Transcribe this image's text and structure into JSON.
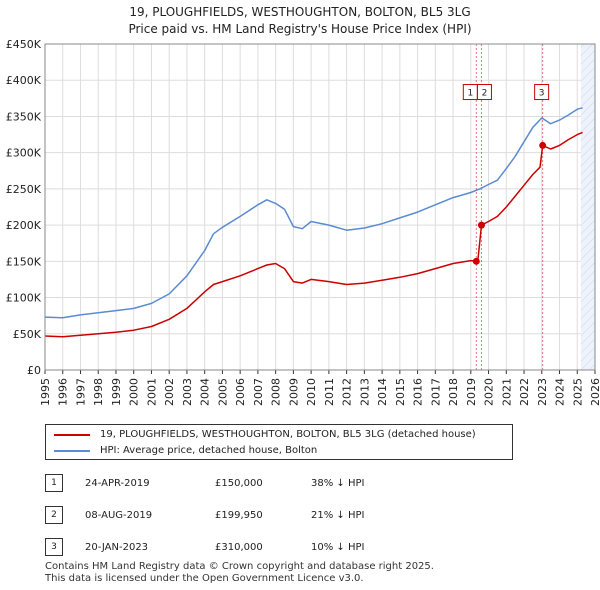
{
  "chart_data": {
    "type": "line",
    "title": "19, PLOUGHFIELDS, WESTHOUGHTON, BOLTON, BL5 3LG",
    "subtitle": "Price paid vs. HM Land Registry's House Price Index (HPI)",
    "xlim": [
      1995,
      2026
    ],
    "ylim": [
      0,
      450000
    ],
    "x_ticks": [
      "1995",
      "1996",
      "1997",
      "1998",
      "1999",
      "2000",
      "2001",
      "2002",
      "2003",
      "2004",
      "2005",
      "2006",
      "2007",
      "2008",
      "2009",
      "2010",
      "2011",
      "2012",
      "2013",
      "2014",
      "2015",
      "2016",
      "2017",
      "2018",
      "2019",
      "2020",
      "2021",
      "2022",
      "2023",
      "2024",
      "2025",
      "2026"
    ],
    "y_ticks": [
      {
        "value": 0,
        "label": "£0"
      },
      {
        "value": 50000,
        "label": "£50K"
      },
      {
        "value": 100000,
        "label": "£100K"
      },
      {
        "value": 150000,
        "label": "£150K"
      },
      {
        "value": 200000,
        "label": "£200K"
      },
      {
        "value": 250000,
        "label": "£250K"
      },
      {
        "value": 300000,
        "label": "£300K"
      },
      {
        "value": 350000,
        "label": "£350K"
      },
      {
        "value": 400000,
        "label": "£400K"
      },
      {
        "value": 450000,
        "label": "£450K"
      }
    ],
    "forecast_from": 2025.2,
    "series": [
      {
        "name": "19, PLOUGHFIELDS, WESTHOUGHTON, BOLTON, BL5 3LG (detached house)",
        "color": "#cc0000",
        "points": [
          [
            1995.0,
            47000
          ],
          [
            1996.0,
            46000
          ],
          [
            1997.0,
            48000
          ],
          [
            1998.0,
            50000
          ],
          [
            1999.0,
            52000
          ],
          [
            2000.0,
            55000
          ],
          [
            2001.0,
            60000
          ],
          [
            2002.0,
            70000
          ],
          [
            2003.0,
            85000
          ],
          [
            2004.0,
            108000
          ],
          [
            2004.5,
            118000
          ],
          [
            2005.0,
            122000
          ],
          [
            2006.0,
            130000
          ],
          [
            2007.0,
            140000
          ],
          [
            2007.5,
            145000
          ],
          [
            2008.0,
            147000
          ],
          [
            2008.5,
            140000
          ],
          [
            2009.0,
            122000
          ],
          [
            2009.5,
            120000
          ],
          [
            2010.0,
            125000
          ],
          [
            2011.0,
            122000
          ],
          [
            2012.0,
            118000
          ],
          [
            2013.0,
            120000
          ],
          [
            2014.0,
            124000
          ],
          [
            2015.0,
            128000
          ],
          [
            2016.0,
            133000
          ],
          [
            2017.0,
            140000
          ],
          [
            2018.0,
            147000
          ],
          [
            2019.0,
            151000
          ],
          [
            2019.31,
            150000
          ],
          [
            2019.4,
            152000
          ],
          [
            2019.6,
            199950
          ],
          [
            2020.0,
            205000
          ],
          [
            2020.5,
            212000
          ],
          [
            2021.0,
            225000
          ],
          [
            2021.5,
            240000
          ],
          [
            2022.0,
            255000
          ],
          [
            2022.5,
            270000
          ],
          [
            2022.9,
            280000
          ],
          [
            2023.05,
            310000
          ],
          [
            2023.5,
            305000
          ],
          [
            2024.0,
            310000
          ],
          [
            2024.5,
            318000
          ],
          [
            2025.0,
            325000
          ],
          [
            2025.3,
            328000
          ]
        ]
      },
      {
        "name": "HPI: Average price, detached house, Bolton",
        "color": "#5b8bd0",
        "points": [
          [
            1995.0,
            73000
          ],
          [
            1996.0,
            72000
          ],
          [
            1997.0,
            76000
          ],
          [
            1998.0,
            79000
          ],
          [
            1999.0,
            82000
          ],
          [
            2000.0,
            85000
          ],
          [
            2001.0,
            92000
          ],
          [
            2002.0,
            105000
          ],
          [
            2003.0,
            130000
          ],
          [
            2004.0,
            165000
          ],
          [
            2004.5,
            188000
          ],
          [
            2005.0,
            197000
          ],
          [
            2006.0,
            212000
          ],
          [
            2007.0,
            228000
          ],
          [
            2007.5,
            235000
          ],
          [
            2008.0,
            230000
          ],
          [
            2008.5,
            222000
          ],
          [
            2009.0,
            198000
          ],
          [
            2009.5,
            195000
          ],
          [
            2010.0,
            205000
          ],
          [
            2011.0,
            200000
          ],
          [
            2012.0,
            193000
          ],
          [
            2013.0,
            196000
          ],
          [
            2014.0,
            202000
          ],
          [
            2015.0,
            210000
          ],
          [
            2016.0,
            218000
          ],
          [
            2017.0,
            228000
          ],
          [
            2018.0,
            238000
          ],
          [
            2019.0,
            245000
          ],
          [
            2019.5,
            250000
          ],
          [
            2020.0,
            256000
          ],
          [
            2020.5,
            262000
          ],
          [
            2021.0,
            278000
          ],
          [
            2021.5,
            295000
          ],
          [
            2022.0,
            315000
          ],
          [
            2022.5,
            335000
          ],
          [
            2023.0,
            348000
          ],
          [
            2023.5,
            340000
          ],
          [
            2024.0,
            345000
          ],
          [
            2024.5,
            352000
          ],
          [
            2025.0,
            360000
          ],
          [
            2025.3,
            362000
          ]
        ]
      }
    ],
    "transactions": [
      {
        "label": "1",
        "x": 2019.31,
        "price": 150000,
        "marker_y": 150000
      },
      {
        "label": "2",
        "x": 2019.6,
        "price": 199950,
        "marker_y": 199950
      },
      {
        "label": "3",
        "x": 2023.05,
        "price": 310000,
        "marker_y": 310000
      }
    ],
    "box_label_value": 383000
  },
  "legend": {
    "items": [
      {
        "label": "19, PLOUGHFIELDS, WESTHOUGHTON, BOLTON, BL5 3LG (detached house)",
        "color": "#cc0000"
      },
      {
        "label": "HPI: Average price, detached house, Bolton",
        "color": "#5b8bd0"
      }
    ]
  },
  "sales": [
    {
      "num": "1",
      "date": "24-APR-2019",
      "price": "£150,000",
      "hpi": "38% ↓ HPI"
    },
    {
      "num": "2",
      "date": "08-AUG-2019",
      "price": "£199,950",
      "hpi": "21% ↓ HPI"
    },
    {
      "num": "3",
      "date": "20-JAN-2023",
      "price": "£310,000",
      "hpi": "10% ↓ HPI"
    }
  ],
  "footer": {
    "line1": "Contains HM Land Registry data © Crown copyright and database right 2025.",
    "line2": "This data is licensed under the Open Government Licence v3.0."
  }
}
